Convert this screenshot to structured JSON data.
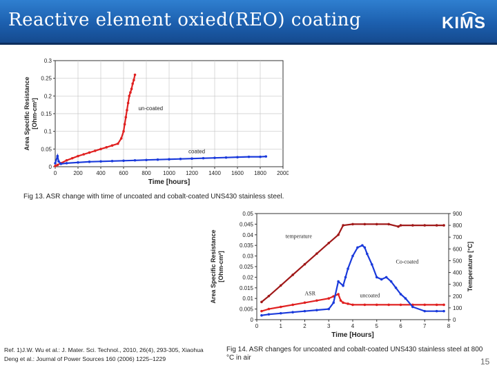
{
  "slide": {
    "title": "Reactive element oxied(REO) coating",
    "logo": "KIMS",
    "page_number": "15",
    "reference": "Ref. 1)J.W. Wu et al.: J. Mater. Sci. Technol., 2010, 26(4), 293-305, Xiaohua Deng et al.: Journal of Power Sources 160 (2006) 1225–1229"
  },
  "colors": {
    "header_blue": "#1c5fae",
    "red_series": "#e02020",
    "blue_series": "#1a3adb",
    "dark_red_series": "#a01818"
  },
  "chart_data": [
    {
      "type": "scatter",
      "caption": "Fig 13. ASR change with time of uncoated and cobalt-coated UNS430 stainless steel.",
      "xlabel": "Time [hours]",
      "ylabel_line1": "Area Specific Resistance",
      "ylabel_line2": "[Ohm-cm²]",
      "xlim": [
        0,
        2000
      ],
      "ylim": [
        0,
        0.3
      ],
      "x_ticks": [
        "0",
        "200",
        "400",
        "600",
        "800",
        "1000",
        "1200",
        "1400",
        "1600",
        "1800",
        "2000"
      ],
      "y_ticks": [
        "0",
        "0.05",
        "0.1",
        "0.15",
        "0.2",
        "0.25",
        "0.3"
      ],
      "grid": true,
      "annotations": [
        {
          "text": "un-coated",
          "x": 730,
          "y": 0.16
        },
        {
          "text": "coated",
          "x": 1170,
          "y": 0.038
        }
      ],
      "series": [
        {
          "name": "un-coated",
          "color": "#e02020",
          "x": [
            0,
            20,
            50,
            100,
            150,
            200,
            250,
            300,
            350,
            400,
            450,
            500,
            550,
            580,
            600,
            610,
            620,
            630,
            640,
            650,
            660,
            670,
            680,
            690,
            700
          ],
          "y": [
            0.002,
            0.005,
            0.01,
            0.018,
            0.024,
            0.03,
            0.035,
            0.04,
            0.045,
            0.05,
            0.055,
            0.06,
            0.065,
            0.08,
            0.1,
            0.12,
            0.14,
            0.16,
            0.18,
            0.2,
            0.21,
            0.22,
            0.235,
            0.245,
            0.26
          ]
        },
        {
          "name": "coated",
          "color": "#1a3adb",
          "x": [
            0,
            20,
            30,
            50,
            100,
            200,
            300,
            400,
            500,
            600,
            700,
            800,
            900,
            1000,
            1100,
            1200,
            1300,
            1400,
            1500,
            1600,
            1700,
            1800,
            1850
          ],
          "y": [
            0.01,
            0.03,
            0.015,
            0.008,
            0.01,
            0.012,
            0.014,
            0.015,
            0.016,
            0.017,
            0.018,
            0.019,
            0.02,
            0.021,
            0.022,
            0.023,
            0.024,
            0.025,
            0.026,
            0.027,
            0.028,
            0.028,
            0.029
          ]
        }
      ]
    },
    {
      "type": "scatter",
      "caption": "Fig 14. ASR changes for uncoated and cobalt-coated UNS430 stainless steel at 800 °C in air",
      "xlabel": "Time [Hours]",
      "ylabel_line1": "Area Specific Resistance",
      "ylabel_line2": "[Ohm-cm²]",
      "y2label": "Temperature [°C]",
      "xlim": [
        0,
        8
      ],
      "ylim": [
        0,
        0.05
      ],
      "y2lim": [
        0,
        900
      ],
      "x_ticks": [
        "0",
        "1",
        "2",
        "3",
        "4",
        "5",
        "6",
        "7",
        "8"
      ],
      "y_ticks": [
        "0",
        "0.005",
        "0.01",
        "0.015",
        "0.02",
        "0.025",
        "0.03",
        "0.035",
        "0.04",
        "0.045",
        "0.05"
      ],
      "y2_ticks": [
        "0",
        "100",
        "200",
        "300",
        "400",
        "500",
        "600",
        "700",
        "800",
        "900"
      ],
      "grid": false,
      "annotations": [
        {
          "text": "temperature",
          "x": 1.2,
          "y": 0.0385
        },
        {
          "text": "Co-coated",
          "x": 5.8,
          "y": 0.0265
        },
        {
          "text": "ASR",
          "x": 2.0,
          "y": 0.0115
        },
        {
          "text": "uncoated",
          "x": 4.3,
          "y": 0.0105
        }
      ],
      "series": [
        {
          "name": "temperature",
          "color": "#a01818",
          "axis": "y2",
          "x": [
            0.2,
            0.5,
            1,
            1.5,
            2,
            2.5,
            3,
            3.4,
            3.6,
            4,
            4.5,
            5,
            5.5,
            5.9,
            6,
            6.5,
            7,
            7.5,
            7.8
          ],
          "y": [
            150,
            200,
            290,
            380,
            470,
            560,
            650,
            720,
            800,
            810,
            810,
            810,
            810,
            790,
            800,
            800,
            800,
            800,
            800
          ]
        },
        {
          "name": "uncoated",
          "color": "#e02020",
          "axis": "y",
          "x": [
            0.2,
            0.5,
            1,
            1.5,
            2,
            2.5,
            3,
            3.2,
            3.4,
            3.5,
            3.6,
            3.8,
            4,
            4.5,
            5,
            5.5,
            6,
            6.5,
            7,
            7.5,
            7.8
          ],
          "y": [
            0.004,
            0.005,
            0.006,
            0.007,
            0.008,
            0.009,
            0.01,
            0.011,
            0.012,
            0.009,
            0.008,
            0.0075,
            0.007,
            0.007,
            0.007,
            0.007,
            0.007,
            0.007,
            0.007,
            0.007,
            0.007
          ]
        },
        {
          "name": "Co-coated",
          "color": "#1a3adb",
          "axis": "y",
          "x": [
            0.2,
            0.5,
            1,
            1.5,
            2,
            2.5,
            3,
            3.2,
            3.4,
            3.6,
            3.7,
            3.8,
            4,
            4.2,
            4.4,
            4.5,
            4.6,
            4.8,
            5,
            5.2,
            5.4,
            5.6,
            5.8,
            6,
            6.2,
            6.5,
            7,
            7.5,
            7.8
          ],
          "y": [
            0.002,
            0.0025,
            0.003,
            0.0035,
            0.004,
            0.0045,
            0.005,
            0.008,
            0.018,
            0.016,
            0.02,
            0.024,
            0.03,
            0.034,
            0.035,
            0.034,
            0.031,
            0.026,
            0.02,
            0.019,
            0.02,
            0.018,
            0.015,
            0.012,
            0.01,
            0.006,
            0.004,
            0.004,
            0.004
          ]
        }
      ]
    }
  ]
}
